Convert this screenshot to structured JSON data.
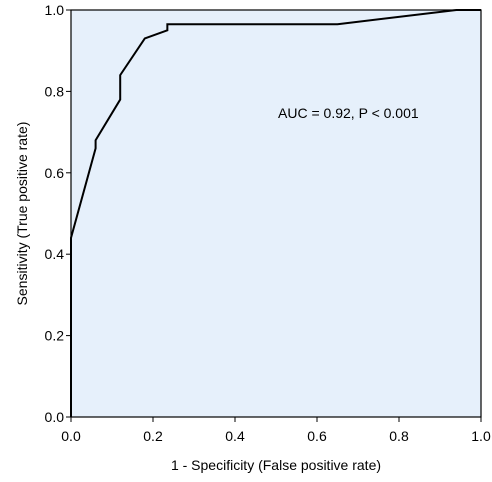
{
  "chart_data": {
    "type": "line",
    "title": "",
    "xlabel": "1 - Specificity (False positive rate)",
    "ylabel": "Sensitivity (True positive rate)",
    "xlim": [
      0,
      1
    ],
    "ylim": [
      0,
      1
    ],
    "x_ticks": [
      "0.0",
      "0.2",
      "0.4",
      "0.6",
      "0.8",
      "1.0"
    ],
    "y_ticks": [
      "0.0",
      "0.2",
      "0.4",
      "0.6",
      "0.8",
      "1.0"
    ],
    "grid": false,
    "annotation": "AUC = 0.92,  P < 0.001",
    "plot_background": "#e6f0fb",
    "line_color": "#000000",
    "series": [
      {
        "x": [
          0.0,
          0.0,
          0.0,
          0.0,
          0.06,
          0.06,
          0.12,
          0.12,
          0.18,
          0.235,
          0.235,
          0.65,
          0.94,
          1.0
        ],
        "y": [
          0.0,
          0.42,
          0.44,
          0.44,
          0.66,
          0.68,
          0.78,
          0.84,
          0.93,
          0.95,
          0.965,
          0.965,
          1.0,
          1.0
        ]
      }
    ]
  }
}
